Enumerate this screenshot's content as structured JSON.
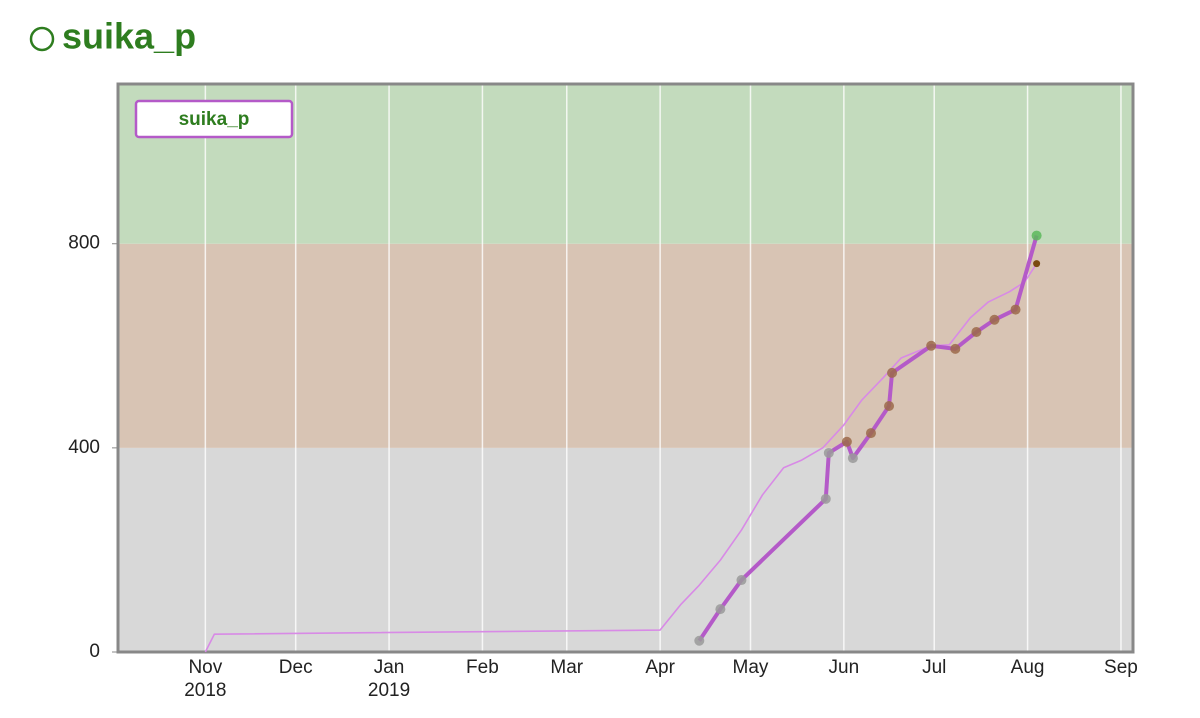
{
  "chart_data": {
    "type": "line",
    "title": "suika_p",
    "xlim": [
      "2018-10-03",
      "2019-09-05"
    ],
    "ylim": [
      0,
      1113
    ],
    "yticks": [
      0,
      400,
      800
    ],
    "xticks": [
      {
        "value": "2018-11-01",
        "label": "Nov",
        "year": "2018"
      },
      {
        "value": "2018-12-01",
        "label": "Dec"
      },
      {
        "value": "2019-01-01",
        "label": "Jan",
        "year": "2019"
      },
      {
        "value": "2019-02-01",
        "label": "Feb"
      },
      {
        "value": "2019-03-01",
        "label": "Mar"
      },
      {
        "value": "2019-04-01",
        "label": "Apr"
      },
      {
        "value": "2019-05-01",
        "label": "May"
      },
      {
        "value": "2019-06-01",
        "label": "Jun"
      },
      {
        "value": "2019-07-01",
        "label": "Jul"
      },
      {
        "value": "2019-08-01",
        "label": "Aug"
      },
      {
        "value": "2019-09-01",
        "label": "Sep"
      }
    ],
    "grid": true,
    "legend": "upper left",
    "bands": [
      {
        "from": 0,
        "to": 400,
        "color": "#d8d8d8"
      },
      {
        "from": 400,
        "to": 800,
        "color": "#d8c4b4"
      },
      {
        "from": 800,
        "to": 1113,
        "color": "#c3dbbd"
      }
    ],
    "point_colors": [
      "#9a9a9a",
      "#9c6a4a",
      "#5cb85c"
    ],
    "series": [
      {
        "name": "suika_p",
        "color": "#b45ac8",
        "x": [
          "2019-04-14",
          "2019-04-21",
          "2019-04-28",
          "2019-05-26",
          "2019-05-27",
          "2019-06-02",
          "2019-06-04",
          "2019-06-10",
          "2019-06-16",
          "2019-06-17",
          "2019-06-30",
          "2019-07-08",
          "2019-07-15",
          "2019-07-21",
          "2019-07-28",
          "2019-08-04"
        ],
        "values": [
          22,
          84,
          141,
          300,
          390,
          412,
          380,
          429,
          482,
          547,
          600,
          594,
          627,
          651,
          671,
          816
        ]
      },
      {
        "color": "#d88ae6",
        "x": [
          "2018-11-01",
          "2018-11-04",
          "2019-04-01",
          "2019-04-08",
          "2019-04-14",
          "2019-04-21",
          "2019-04-28",
          "2019-05-05",
          "2019-05-12",
          "2019-05-18",
          "2019-05-25",
          "2019-06-01",
          "2019-06-07",
          "2019-06-14",
          "2019-06-20",
          "2019-06-30",
          "2019-07-06",
          "2019-07-13",
          "2019-07-19",
          "2019-07-26",
          "2019-07-31",
          "2019-08-04"
        ],
        "values": [
          0,
          35,
          43,
          94,
          131,
          180,
          239,
          308,
          361,
          376,
          400,
          445,
          494,
          537,
          576,
          600,
          602,
          655,
          686,
          706,
          725,
          761
        ]
      }
    ]
  }
}
